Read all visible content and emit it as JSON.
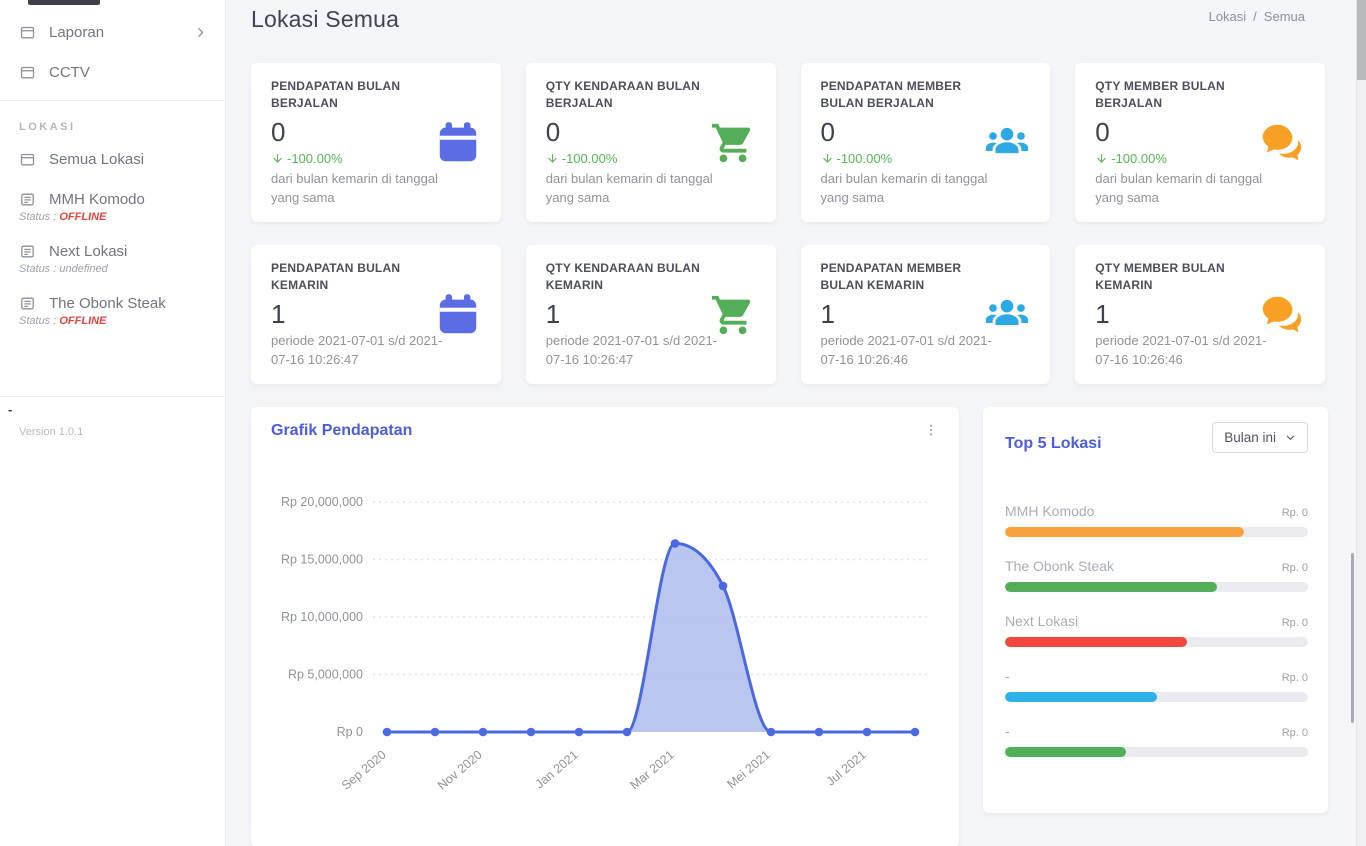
{
  "page": {
    "title": "Lokasi Semua",
    "breadcrumb": {
      "parent": "Lokasi",
      "separator": "/",
      "current": "Semua"
    }
  },
  "sidebar": {
    "menu": [
      {
        "label": "Laporan",
        "icon": "window-icon",
        "chevron": true
      },
      {
        "label": "CCTV",
        "icon": "window-icon",
        "chevron": false
      }
    ],
    "section": "LOKASI",
    "locations": [
      {
        "label": "Semua Lokasi",
        "icon": "window-icon",
        "status_prefix": "",
        "status": "",
        "status_type": ""
      },
      {
        "label": "MMH Komodo",
        "icon": "news-icon",
        "status_prefix": "Status : ",
        "status": "OFFLINE",
        "status_type": "offline"
      },
      {
        "label": "Next Lokasi",
        "icon": "news-icon",
        "status_prefix": "Status : ",
        "status": "undefined",
        "status_type": "undef"
      },
      {
        "label": "The Obonk Steak",
        "icon": "news-icon",
        "status_prefix": "Status : ",
        "status": "OFFLINE",
        "status_type": "offline"
      }
    ],
    "footer_dash": "-",
    "version": "Version 1.0.1"
  },
  "cards": [
    {
      "title": "PENDAPATAN BULAN BERJALAN",
      "value": "0",
      "delta": "-100.00%",
      "desc": "dari bulan kemarin di tanggal yang sama",
      "icon": "calendar-icon",
      "color": "#5b6ce4"
    },
    {
      "title": "QTY KENDARAAN BULAN BERJALAN",
      "value": "0",
      "delta": "-100.00%",
      "desc": "dari bulan kemarin di tanggal yang sama",
      "icon": "cart-icon",
      "color": "#53ae57"
    },
    {
      "title": "PENDAPATAN MEMBER BULAN BERJALAN",
      "value": "0",
      "delta": "-100.00%",
      "desc": "dari bulan kemarin di tanggal yang sama",
      "icon": "people-icon",
      "color": "#2caae4"
    },
    {
      "title": "QTY MEMBER BULAN BERJALAN",
      "value": "0",
      "delta": "-100.00%",
      "desc": "dari bulan kemarin di tanggal yang sama",
      "icon": "chat-icon",
      "color": "#f7a024"
    },
    {
      "title": "PENDAPATAN BULAN KEMARIN",
      "value": "1",
      "delta": null,
      "desc": "periode 2021-07-01 s/d 2021-07-16 10:26:47",
      "icon": "calendar-icon",
      "color": "#5b6ce4"
    },
    {
      "title": "QTY KENDARAAN BULAN KEMARIN",
      "value": "1",
      "delta": null,
      "desc": "periode 2021-07-01 s/d 2021-07-16 10:26:47",
      "icon": "cart-icon",
      "color": "#53ae57"
    },
    {
      "title": "PENDAPATAN MEMBER BULAN KEMARIN",
      "value": "1",
      "delta": null,
      "desc": "periode 2021-07-01 s/d 2021-07-16 10:26:46",
      "icon": "people-icon",
      "color": "#2caae4"
    },
    {
      "title": "QTY MEMBER BULAN KEMARIN",
      "value": "1",
      "delta": null,
      "desc": "periode 2021-07-01 s/d 2021-07-16 10:26:46",
      "icon": "chat-icon",
      "color": "#f7a024"
    }
  ],
  "chart_data": {
    "type": "area",
    "title": "Grafik Pendapatan",
    "num_points": 12,
    "x_tick_labels": [
      "Sep 2020",
      "Nov 2020",
      "Jan 2021",
      "Mar 2021",
      "Mei 2021",
      "Jul 2021"
    ],
    "values": [
      0,
      0,
      0,
      0,
      0,
      0,
      16400000,
      12700000,
      0,
      0,
      0,
      0
    ],
    "y_tick_labels": [
      "Rp 0",
      "Rp 5,000,000",
      "Rp 10,000,000",
      "Rp 15,000,000",
      "Rp 20,000,000"
    ],
    "ylim": [
      0,
      20000000
    ],
    "grid": "dotted-horizontal",
    "legend": "none",
    "line_color": "#4a68df",
    "fill_color": "#aebcec",
    "axis_label_color": "#8e939c"
  },
  "top5": {
    "title": "Top 5 Lokasi",
    "filter_value": "Bulan ini",
    "items": [
      {
        "name": "MMH Komodo",
        "value": "Rp. 0",
        "color": "#f9a23b",
        "pct": 79
      },
      {
        "name": "The Obonk Steak",
        "value": "Rp. 0",
        "color": "#52ae57",
        "pct": 70
      },
      {
        "name": "Next Lokasi",
        "value": "Rp. 0",
        "color": "#f2473f",
        "pct": 60
      },
      {
        "name": "-",
        "value": "Rp. 0",
        "color": "#2fb1ea",
        "pct": 50
      },
      {
        "name": "-",
        "value": "Rp. 0",
        "color": "#52ae57",
        "pct": 40
      }
    ]
  }
}
